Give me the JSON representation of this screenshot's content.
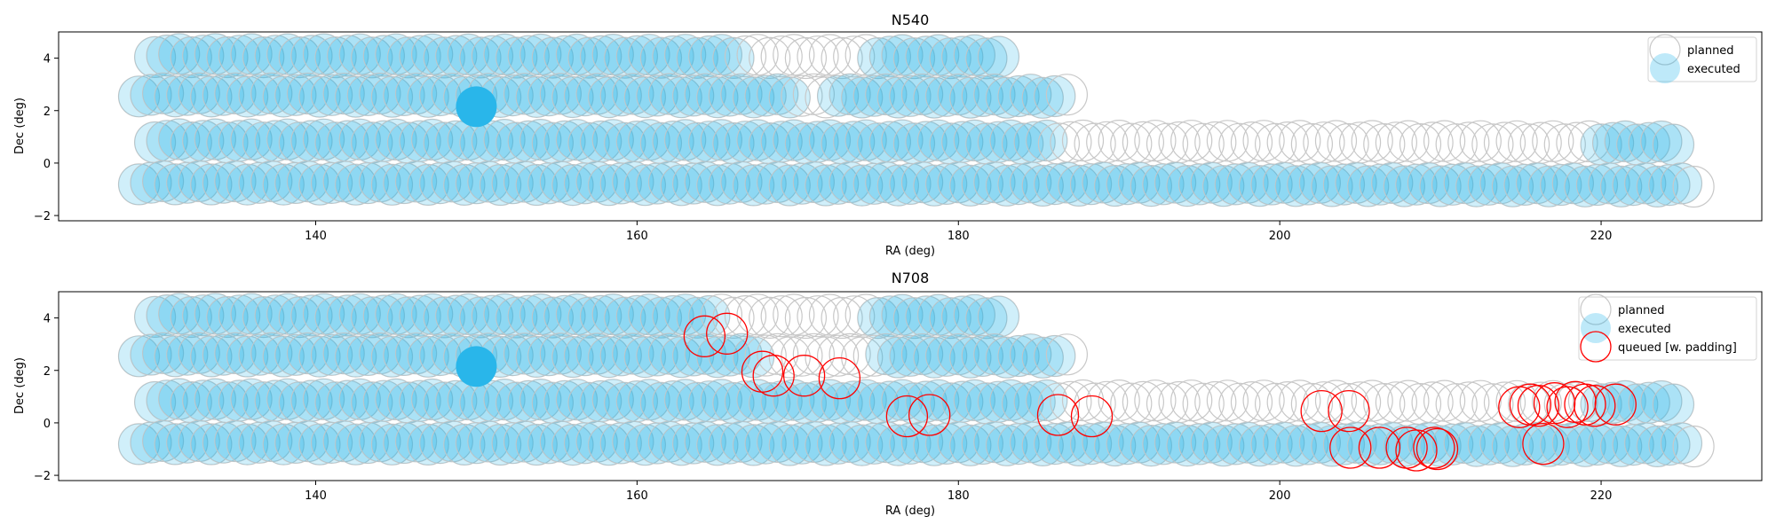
{
  "colors": {
    "planned": "#c8c8c8",
    "executed": "#29b6ea",
    "executed_fill_opacity": 0.22,
    "queued": "#ff0000",
    "highlight": "#29b6ea"
  },
  "chart_data": [
    {
      "type": "scatter",
      "title": "N540",
      "xlabel": "RA (deg)",
      "ylabel": "Dec (deg)",
      "xlim": [
        124,
        230
      ],
      "ylim": [
        -2.2,
        5
      ],
      "xticks": [
        140,
        160,
        180,
        200,
        220
      ],
      "yticks": [
        -2,
        0,
        2,
        4
      ],
      "grid": false,
      "legend_position": "top-right",
      "legend": [
        "planned",
        "executed"
      ],
      "rows": [
        {
          "dec": 4.1,
          "ra_start": 130,
          "ra_end": 182.5,
          "step": 0.75
        },
        {
          "dec": 2.6,
          "ra_start": 129,
          "ra_end": 186.5,
          "step": 0.75
        },
        {
          "dec": 0.85,
          "ra_start": 130,
          "ra_end": 224.5,
          "step": 0.75
        },
        {
          "dec": -0.75,
          "ra_start": 129,
          "ra_end": 225.5,
          "step": 0.75
        }
      ],
      "executed_ranges": [
        {
          "dec": 4.1,
          "ra": [
            [
              130,
              166
            ],
            [
              175,
              182.5
            ]
          ]
        },
        {
          "dec": 2.6,
          "ra": [
            [
              129,
              170
            ],
            [
              172.5,
              186.5
            ]
          ]
        },
        {
          "dec": 0.85,
          "ra": [
            [
              130,
              186
            ],
            [
              219.5,
              224.5
            ]
          ]
        },
        {
          "dec": -0.75,
          "ra": [
            [
              129,
              225.5
            ]
          ]
        }
      ],
      "highlight_point": {
        "ra": 150,
        "dec": 2.15
      },
      "queued": []
    },
    {
      "type": "scatter",
      "title": "N708",
      "xlabel": "RA (deg)",
      "ylabel": "Dec (deg)",
      "xlim": [
        124,
        230
      ],
      "ylim": [
        -2.2,
        5
      ],
      "xticks": [
        140,
        160,
        180,
        200,
        220
      ],
      "yticks": [
        -2,
        0,
        2,
        4
      ],
      "grid": false,
      "legend_position": "top-right",
      "legend": [
        "planned",
        "executed",
        "queued [w. padding]"
      ],
      "rows": [
        {
          "dec": 4.1,
          "ra_start": 130,
          "ra_end": 182.5,
          "step": 0.75
        },
        {
          "dec": 2.6,
          "ra_start": 129,
          "ra_end": 186.5,
          "step": 0.75
        },
        {
          "dec": 0.85,
          "ra_start": 130,
          "ra_end": 224.5,
          "step": 0.75
        },
        {
          "dec": -0.75,
          "ra_start": 129,
          "ra_end": 225.5,
          "step": 0.75
        }
      ],
      "executed_ranges": [
        {
          "dec": 4.1,
          "ra": [
            [
              130,
              165
            ],
            [
              175,
              182.5
            ]
          ]
        },
        {
          "dec": 2.6,
          "ra": [
            [
              129,
              167.5
            ],
            [
              175,
              186.5
            ]
          ]
        },
        {
          "dec": 0.85,
          "ra": [
            [
              130,
              186
            ],
            [
              220,
              224.5
            ]
          ]
        },
        {
          "dec": -0.75,
          "ra": [
            [
              129,
              225.5
            ]
          ]
        }
      ],
      "highlight_point": {
        "ra": 150,
        "dec": 2.15
      },
      "queued": [
        {
          "ra": 164.2,
          "dec": 3.3
        },
        {
          "ra": 165.6,
          "dec": 3.4
        },
        {
          "ra": 167.8,
          "dec": 1.95
        },
        {
          "ra": 168.5,
          "dec": 1.8
        },
        {
          "ra": 170.4,
          "dec": 1.8
        },
        {
          "ra": 172.6,
          "dec": 1.7
        },
        {
          "ra": 176.8,
          "dec": 0.25
        },
        {
          "ra": 178.2,
          "dec": 0.3
        },
        {
          "ra": 186.2,
          "dec": 0.3
        },
        {
          "ra": 188.3,
          "dec": 0.25
        },
        {
          "ra": 202.6,
          "dec": 0.45
        },
        {
          "ra": 204.3,
          "dec": 0.45
        },
        {
          "ra": 204.4,
          "dec": -0.95
        },
        {
          "ra": 206.2,
          "dec": -0.95
        },
        {
          "ra": 207.9,
          "dec": -0.95
        },
        {
          "ra": 208.5,
          "dec": -1.05
        },
        {
          "ra": 209.6,
          "dec": -0.95
        },
        {
          "ra": 209.8,
          "dec": -1.0
        },
        {
          "ra": 214.9,
          "dec": 0.6
        },
        {
          "ra": 215.6,
          "dec": 0.7
        },
        {
          "ra": 216.1,
          "dec": 0.65
        },
        {
          "ra": 216.4,
          "dec": -0.8
        },
        {
          "ra": 217.1,
          "dec": 0.75
        },
        {
          "ra": 217.9,
          "dec": 0.6
        },
        {
          "ra": 218.4,
          "dec": 0.8
        },
        {
          "ra": 219.0,
          "dec": 0.7
        },
        {
          "ra": 219.6,
          "dec": 0.65
        },
        {
          "ra": 220.9,
          "dec": 0.7
        }
      ]
    }
  ]
}
